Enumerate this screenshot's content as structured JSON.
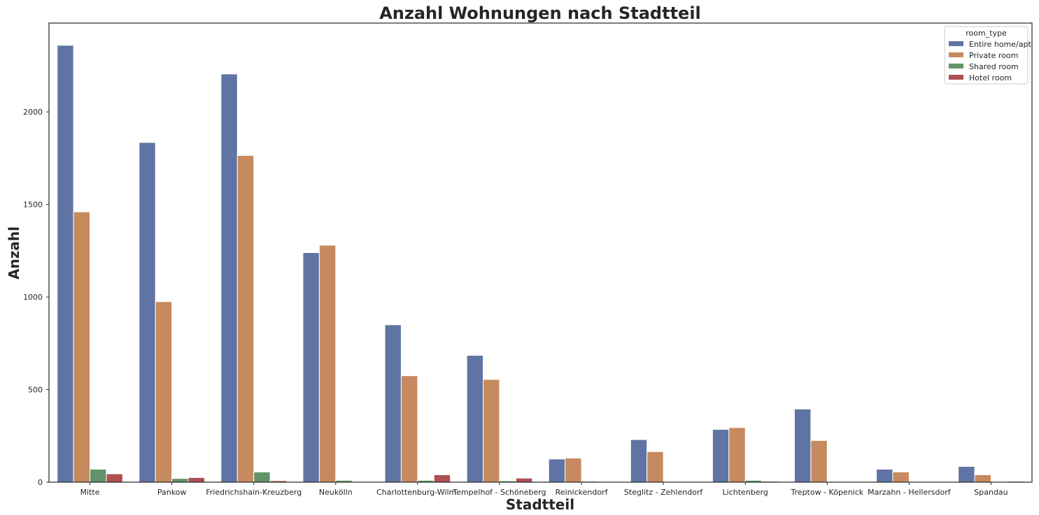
{
  "chart_data": {
    "type": "bar",
    "title": "Anzahl Wohnungen nach Stadtteil",
    "xlabel": "Stadtteil",
    "ylabel": "Anzahl",
    "ylim": [
      0,
      2480
    ],
    "yticks": [
      0,
      500,
      1000,
      1500,
      2000
    ],
    "grid": false,
    "legend": {
      "title": "room_type",
      "placement": "top-right"
    },
    "categories": [
      "Mitte",
      "Pankow",
      "Friedrichshain-Kreuzberg",
      "Neukölln",
      "Charlottenburg-Wilm.",
      "Tempelhof - Schöneberg",
      "Reinickendorf",
      "Steglitz - Zehlendorf",
      "Lichtenberg",
      "Treptow - Köpenick",
      "Marzahn - Hellersdorf",
      "Spandau"
    ],
    "series": [
      {
        "name": "Entire home/apt",
        "color": "#5f74a4",
        "values": [
          2360,
          1835,
          2205,
          1240,
          850,
          685,
          125,
          230,
          285,
          395,
          70,
          85
        ]
      },
      {
        "name": "Private room",
        "color": "#c68a5e",
        "values": [
          1460,
          975,
          1765,
          1280,
          575,
          555,
          130,
          165,
          295,
          225,
          55,
          40
        ]
      },
      {
        "name": "Shared room",
        "color": "#64936a",
        "values": [
          70,
          20,
          55,
          10,
          10,
          7,
          5,
          2,
          10,
          2,
          2,
          2
        ]
      },
      {
        "name": "Hotel room",
        "color": "#ad5050",
        "values": [
          45,
          25,
          8,
          0,
          40,
          22,
          0,
          0,
          5,
          0,
          0,
          5
        ]
      }
    ]
  }
}
